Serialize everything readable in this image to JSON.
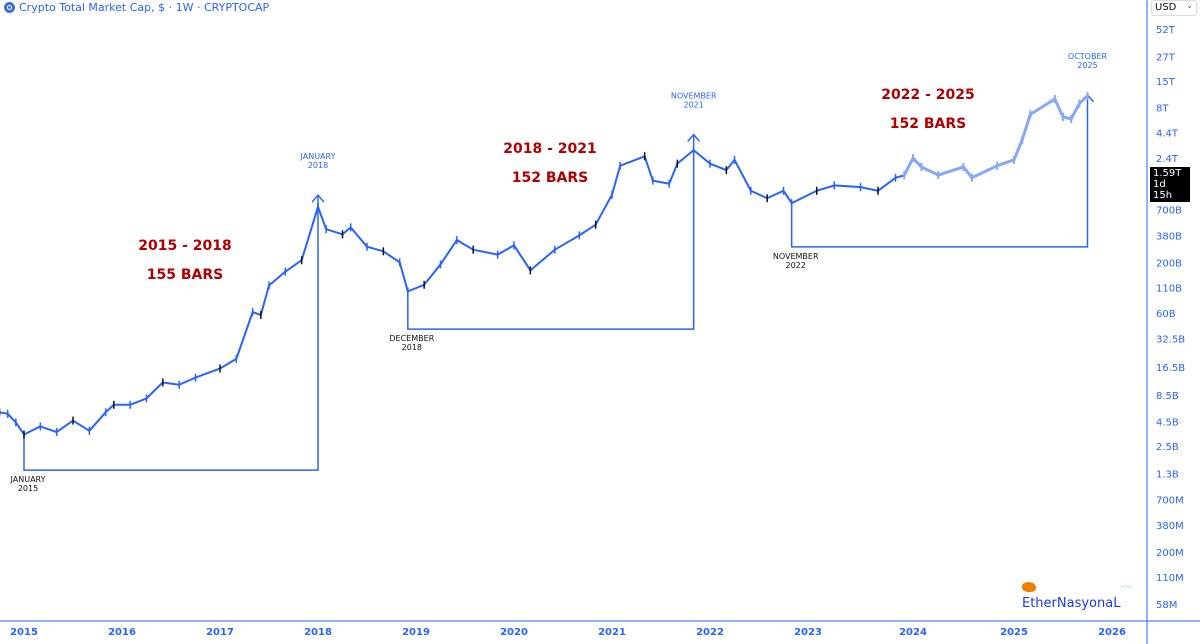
{
  "header": {
    "title": "Crypto Total Market Cap, $ · 1W · CRYPTOCAP",
    "currency": "USD"
  },
  "price_tag": {
    "value": "1.59T",
    "countdown": "1d 15h"
  },
  "watermark": {
    "text": "EtherNasyonaL"
  },
  "colors": {
    "candles": "#2962ff",
    "projection": "#86a8f5",
    "annotation_text": "#b00000",
    "axis_text": "#2962ff"
  },
  "chart_data": {
    "type": "candlestick",
    "title": "Crypto Total Market Cap, $ · 1W · CRYPTOCAP",
    "yscale": "log",
    "ylim": [
      58000000,
      52000000000000
    ],
    "xlim": [
      "2014-10",
      "2026-03"
    ],
    "y_ticks": [
      "52T",
      "27T",
      "15T",
      "8T",
      "4.4T",
      "2.4T",
      "700B",
      "380B",
      "200B",
      "110B",
      "60B",
      "32.5B",
      "16.5B",
      "8.5B",
      "4.5B",
      "2.5B",
      "1.3B",
      "700M",
      "380M",
      "200M",
      "110M",
      "58M"
    ],
    "y_tick_values": [
      52000000000000.0,
      27000000000000.0,
      15000000000000.0,
      8000000000000.0,
      4400000000000.0,
      2400000000000.0,
      700000000000.0,
      380000000000.0,
      200000000000.0,
      110000000000.0,
      60000000000.0,
      32500000000.0,
      16500000000.0,
      8500000000.0,
      4500000000.0,
      2500000000.0,
      1300000000.0,
      700000000.0,
      380000000.0,
      200000000.0,
      110000000.0,
      58000000.0
    ],
    "x_ticks": [
      "2015",
      "2016",
      "2017",
      "2018",
      "2019",
      "2020",
      "2021",
      "2022",
      "2023",
      "2024",
      "2025",
      "2026"
    ],
    "grid": false,
    "series": [
      {
        "kind": "actual",
        "points": [
          [
            "2014-10",
            5600000000.0
          ],
          [
            "2014-11",
            5400000000.0
          ],
          [
            "2014-12",
            4400000000.0
          ],
          [
            "2015-01",
            3300000000.0
          ],
          [
            "2015-03",
            4000000000.0
          ],
          [
            "2015-05",
            3500000000.0
          ],
          [
            "2015-07",
            4600000000.0
          ],
          [
            "2015-09",
            3600000000.0
          ],
          [
            "2015-11",
            5600000000.0
          ],
          [
            "2015-12",
            6700000000.0
          ],
          [
            "2016-02",
            6700000000.0
          ],
          [
            "2016-04",
            7800000000.0
          ],
          [
            "2016-06",
            11400000000.0
          ],
          [
            "2016-08",
            10800000000.0
          ],
          [
            "2016-10",
            12800000000.0
          ],
          [
            "2017-01",
            15900000000.0
          ],
          [
            "2017-03",
            20000000000.0
          ],
          [
            "2017-05",
            61000000000.0
          ],
          [
            "2017-06",
            57000000000.0
          ],
          [
            "2017-07",
            115000000000.0
          ],
          [
            "2017-09",
            160000000000.0
          ],
          [
            "2017-11",
            210000000000.0
          ],
          [
            "2018-01",
            750000000000.0
          ],
          [
            "2018-02",
            440000000000.0
          ],
          [
            "2018-04",
            390000000000.0
          ],
          [
            "2018-05",
            460000000000.0
          ],
          [
            "2018-07",
            290000000000.0
          ],
          [
            "2018-09",
            260000000000.0
          ],
          [
            "2018-11",
            200000000000.0
          ],
          [
            "2018-12",
            100000000000.0
          ],
          [
            "2019-02",
            117000000000.0
          ],
          [
            "2019-04",
            190000000000.0
          ],
          [
            "2019-06",
            340000000000.0
          ],
          [
            "2019-08",
            270000000000.0
          ],
          [
            "2019-11",
            240000000000.0
          ],
          [
            "2020-01",
            300000000000.0
          ],
          [
            "2020-03",
            165000000000.0
          ],
          [
            "2020-06",
            270000000000.0
          ],
          [
            "2020-09",
            380000000000.0
          ],
          [
            "2020-11",
            490000000000.0
          ],
          [
            "2021-01",
            1000000000000.0
          ],
          [
            "2021-02",
            2000000000000.0
          ],
          [
            "2021-05",
            2500000000000.0
          ],
          [
            "2021-06",
            1400000000000.0
          ],
          [
            "2021-08",
            1300000000000.0
          ],
          [
            "2021-09",
            2100000000000.0
          ],
          [
            "2021-11",
            2900000000000.0
          ],
          [
            "2022-01",
            2100000000000.0
          ],
          [
            "2022-03",
            1800000000000.0
          ],
          [
            "2022-04",
            2300000000000.0
          ],
          [
            "2022-06",
            1100000000000.0
          ],
          [
            "2022-08",
            920000000000.0
          ],
          [
            "2022-10",
            1100000000000.0
          ],
          [
            "2022-11",
            820000000000.0
          ],
          [
            "2023-02",
            1100000000000.0
          ],
          [
            "2023-04",
            1250000000000.0
          ],
          [
            "2023-07",
            1200000000000.0
          ],
          [
            "2023-09",
            1100000000000.0
          ],
          [
            "2023-11",
            1500000000000.0
          ],
          [
            "2023-12",
            1590000000000.0
          ]
        ]
      },
      {
        "kind": "projection",
        "points": [
          [
            "2023-12",
            1590000000000.0
          ],
          [
            "2024-01",
            2400000000000.0
          ],
          [
            "2024-02",
            1940000000000.0
          ],
          [
            "2024-04",
            1600000000000.0
          ],
          [
            "2024-07",
            1940000000000.0
          ],
          [
            "2024-08",
            1500000000000.0
          ],
          [
            "2024-11",
            2000000000000.0
          ],
          [
            "2025-01",
            2300000000000.0
          ],
          [
            "2025-02",
            3700000000000.0
          ],
          [
            "2025-03",
            6800000000000.0
          ],
          [
            "2025-06",
            9800000000000.0
          ],
          [
            "2025-07",
            6400000000000.0
          ],
          [
            "2025-08",
            6100000000000.0
          ],
          [
            "2025-09",
            8800000000000.0
          ],
          [
            "2025-10",
            10600000000000.0
          ]
        ]
      }
    ],
    "annotations": {
      "cycles": [
        {
          "range": "2015 - 2018",
          "bars": "155 BARS",
          "start": "2015-01",
          "end": "2018-01",
          "start_value": 3300000000.0,
          "end_value": 990000000000.0,
          "base_value": 1410000000.0,
          "start_label": [
            "JANUARY",
            "2015"
          ],
          "end_label": [
            "JANUARY",
            "2018"
          ]
        },
        {
          "range": "2018 - 2021",
          "bars": "152 BARS",
          "start": "2018-12",
          "end": "2021-11",
          "start_value": 100000000000.0,
          "end_value": 4200000000000.0,
          "base_value": 40700000000.0,
          "start_label": [
            "DECEMBER",
            "2018"
          ],
          "end_label": [
            "NOVEMBER",
            "2021"
          ]
        },
        {
          "range": "2022 - 2025",
          "bars": "152 BARS",
          "start": "2022-11",
          "end": "2025-10",
          "start_value": 820000000000.0,
          "end_value": 10800000000000.0,
          "base_value": 289000000000.0,
          "start_label": [
            "NOVEMBER",
            "2022"
          ],
          "end_label": [
            "OCTOBER",
            "2025"
          ]
        }
      ]
    }
  }
}
